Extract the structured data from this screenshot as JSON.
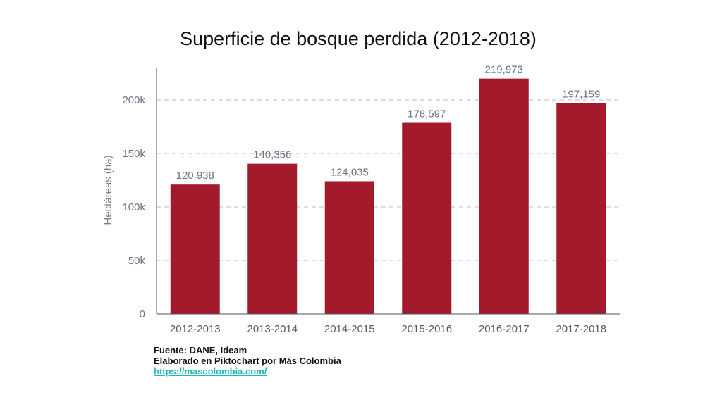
{
  "chart_data": {
    "type": "bar",
    "title": "Superficie de bosque perdida (2012-2018)",
    "xlabel": "",
    "ylabel": "Hectáreas (ha)",
    "categories": [
      "2012-2013",
      "2013-2014",
      "2014-2015",
      "2015-2016",
      "2016-2017",
      "2017-2018"
    ],
    "values": [
      120938,
      140356,
      124035,
      178597,
      219973,
      197159
    ],
    "value_labels": [
      "120,938",
      "140,356",
      "124,035",
      "178,597",
      "219,973",
      "197,159"
    ],
    "ylim": [
      0,
      200000
    ],
    "y_ticks": [
      0,
      50000,
      100000,
      150000,
      200000
    ],
    "y_tick_labels": [
      "0",
      "50k",
      "100k",
      "150k",
      "200k"
    ],
    "grid": "horizontal dashed",
    "bar_color": "#a21a2c"
  },
  "footnote": {
    "source": "Fuente: DANE, Ideam",
    "credit": "Elaborado en Piktochart por Más Colombia",
    "link": "https://mascolombia.com/"
  },
  "colors": {
    "link": "#1fb8b8",
    "grid": "#b9bcc2",
    "axis": "#6b7280"
  }
}
